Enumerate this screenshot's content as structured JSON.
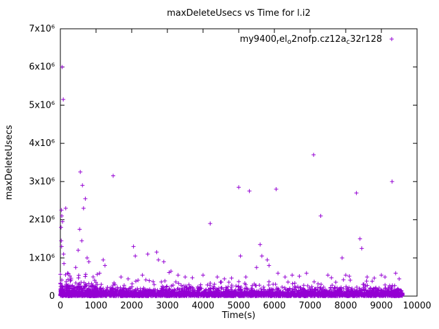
{
  "chart_data": {
    "type": "scatter",
    "title": "maxDeleteUsecs vs Time for l.i2",
    "xlabel": "Time(s)",
    "ylabel": "maxDeleteUsecs",
    "xlim": [
      0,
      10000
    ],
    "ylim": [
      0,
      7000000
    ],
    "grid": false,
    "legend_position": "top-right-inside",
    "x_ticks": [
      0,
      1000,
      2000,
      3000,
      4000,
      5000,
      6000,
      7000,
      8000,
      9000,
      10000
    ],
    "x_tick_labels": [
      "0",
      "1000",
      "2000",
      "3000",
      "4000",
      "5000",
      "6000",
      "7000",
      "8000",
      "9000",
      "10000"
    ],
    "y_ticks": [
      0,
      1000000,
      2000000,
      3000000,
      4000000,
      5000000,
      6000000,
      7000000
    ],
    "y_tick_labels": [
      "0",
      "1x10⁶",
      "2x10⁶",
      "3x10⁶",
      "4x10⁶",
      "5x10⁶",
      "6x10⁶",
      "7x10⁶"
    ],
    "marker": {
      "shape": "plus",
      "color": "#9400D3",
      "size": 7
    },
    "legend": {
      "marker_color": "#9400D3",
      "parts": [
        {
          "t": "my9400",
          "s": false
        },
        {
          "t": "r",
          "s": true
        },
        {
          "t": "el",
          "s": false
        },
        {
          "t": "o",
          "s": true
        },
        {
          "t": "2nofp.cz12a",
          "s": false
        },
        {
          "t": "c",
          "s": true
        },
        {
          "t": "32r128",
          "s": false
        }
      ]
    },
    "outliers": [
      [
        50,
        6000000
      ],
      [
        80,
        5150000
      ],
      [
        150,
        2300000
      ],
      [
        30,
        2250000
      ],
      [
        40,
        2100000
      ],
      [
        60,
        1950000
      ],
      [
        20,
        1800000
      ],
      [
        25,
        1450000
      ],
      [
        35,
        1300000
      ],
      [
        90,
        1100000
      ],
      [
        100,
        850000
      ],
      [
        200,
        600000
      ],
      [
        560,
        3250000
      ],
      [
        620,
        2900000
      ],
      [
        700,
        2550000
      ],
      [
        650,
        2300000
      ],
      [
        540,
        1750000
      ],
      [
        600,
        1450000
      ],
      [
        500,
        1200000
      ],
      [
        750,
        1000000
      ],
      [
        800,
        900000
      ],
      [
        430,
        750000
      ],
      [
        1480,
        3150000
      ],
      [
        1100,
        600000
      ],
      [
        1200,
        950000
      ],
      [
        1250,
        800000
      ],
      [
        1700,
        500000
      ],
      [
        1900,
        450000
      ],
      [
        2050,
        1300000
      ],
      [
        2100,
        1050000
      ],
      [
        2300,
        550000
      ],
      [
        2450,
        1100000
      ],
      [
        2700,
        1150000
      ],
      [
        2750,
        950000
      ],
      [
        2900,
        900000
      ],
      [
        3050,
        620000
      ],
      [
        3100,
        650000
      ],
      [
        3300,
        550000
      ],
      [
        3500,
        500000
      ],
      [
        3700,
        480000
      ],
      [
        4000,
        550000
      ],
      [
        4200,
        1900000
      ],
      [
        4400,
        500000
      ],
      [
        4600,
        450000
      ],
      [
        4800,
        470000
      ],
      [
        5000,
        2850000
      ],
      [
        5050,
        1050000
      ],
      [
        5200,
        500000
      ],
      [
        5300,
        2750000
      ],
      [
        5500,
        750000
      ],
      [
        5600,
        1350000
      ],
      [
        5650,
        1050000
      ],
      [
        5800,
        950000
      ],
      [
        5850,
        800000
      ],
      [
        6050,
        2800000
      ],
      [
        6100,
        600000
      ],
      [
        6300,
        500000
      ],
      [
        6500,
        550000
      ],
      [
        6700,
        520000
      ],
      [
        6900,
        600000
      ],
      [
        7100,
        3700000
      ],
      [
        7300,
        2100000
      ],
      [
        7500,
        550000
      ],
      [
        7600,
        480000
      ],
      [
        7900,
        1000000
      ],
      [
        8000,
        550000
      ],
      [
        8100,
        520000
      ],
      [
        8300,
        2700000
      ],
      [
        8400,
        1500000
      ],
      [
        8450,
        1250000
      ],
      [
        8600,
        500000
      ],
      [
        8800,
        470000
      ],
      [
        9000,
        550000
      ],
      [
        9100,
        500000
      ],
      [
        9300,
        3000000
      ],
      [
        9400,
        600000
      ],
      [
        9500,
        450000
      ]
    ],
    "dense_band": {
      "seed": 42,
      "count": 3200,
      "x_range": [
        0,
        9600
      ],
      "y_exp_mean": 70000,
      "y_cap": 430000,
      "extra_cluster": {
        "count": 260,
        "x_range": [
          0,
          1050
        ],
        "y_exp_mean": 150000,
        "y_cap": 620000
      }
    }
  }
}
